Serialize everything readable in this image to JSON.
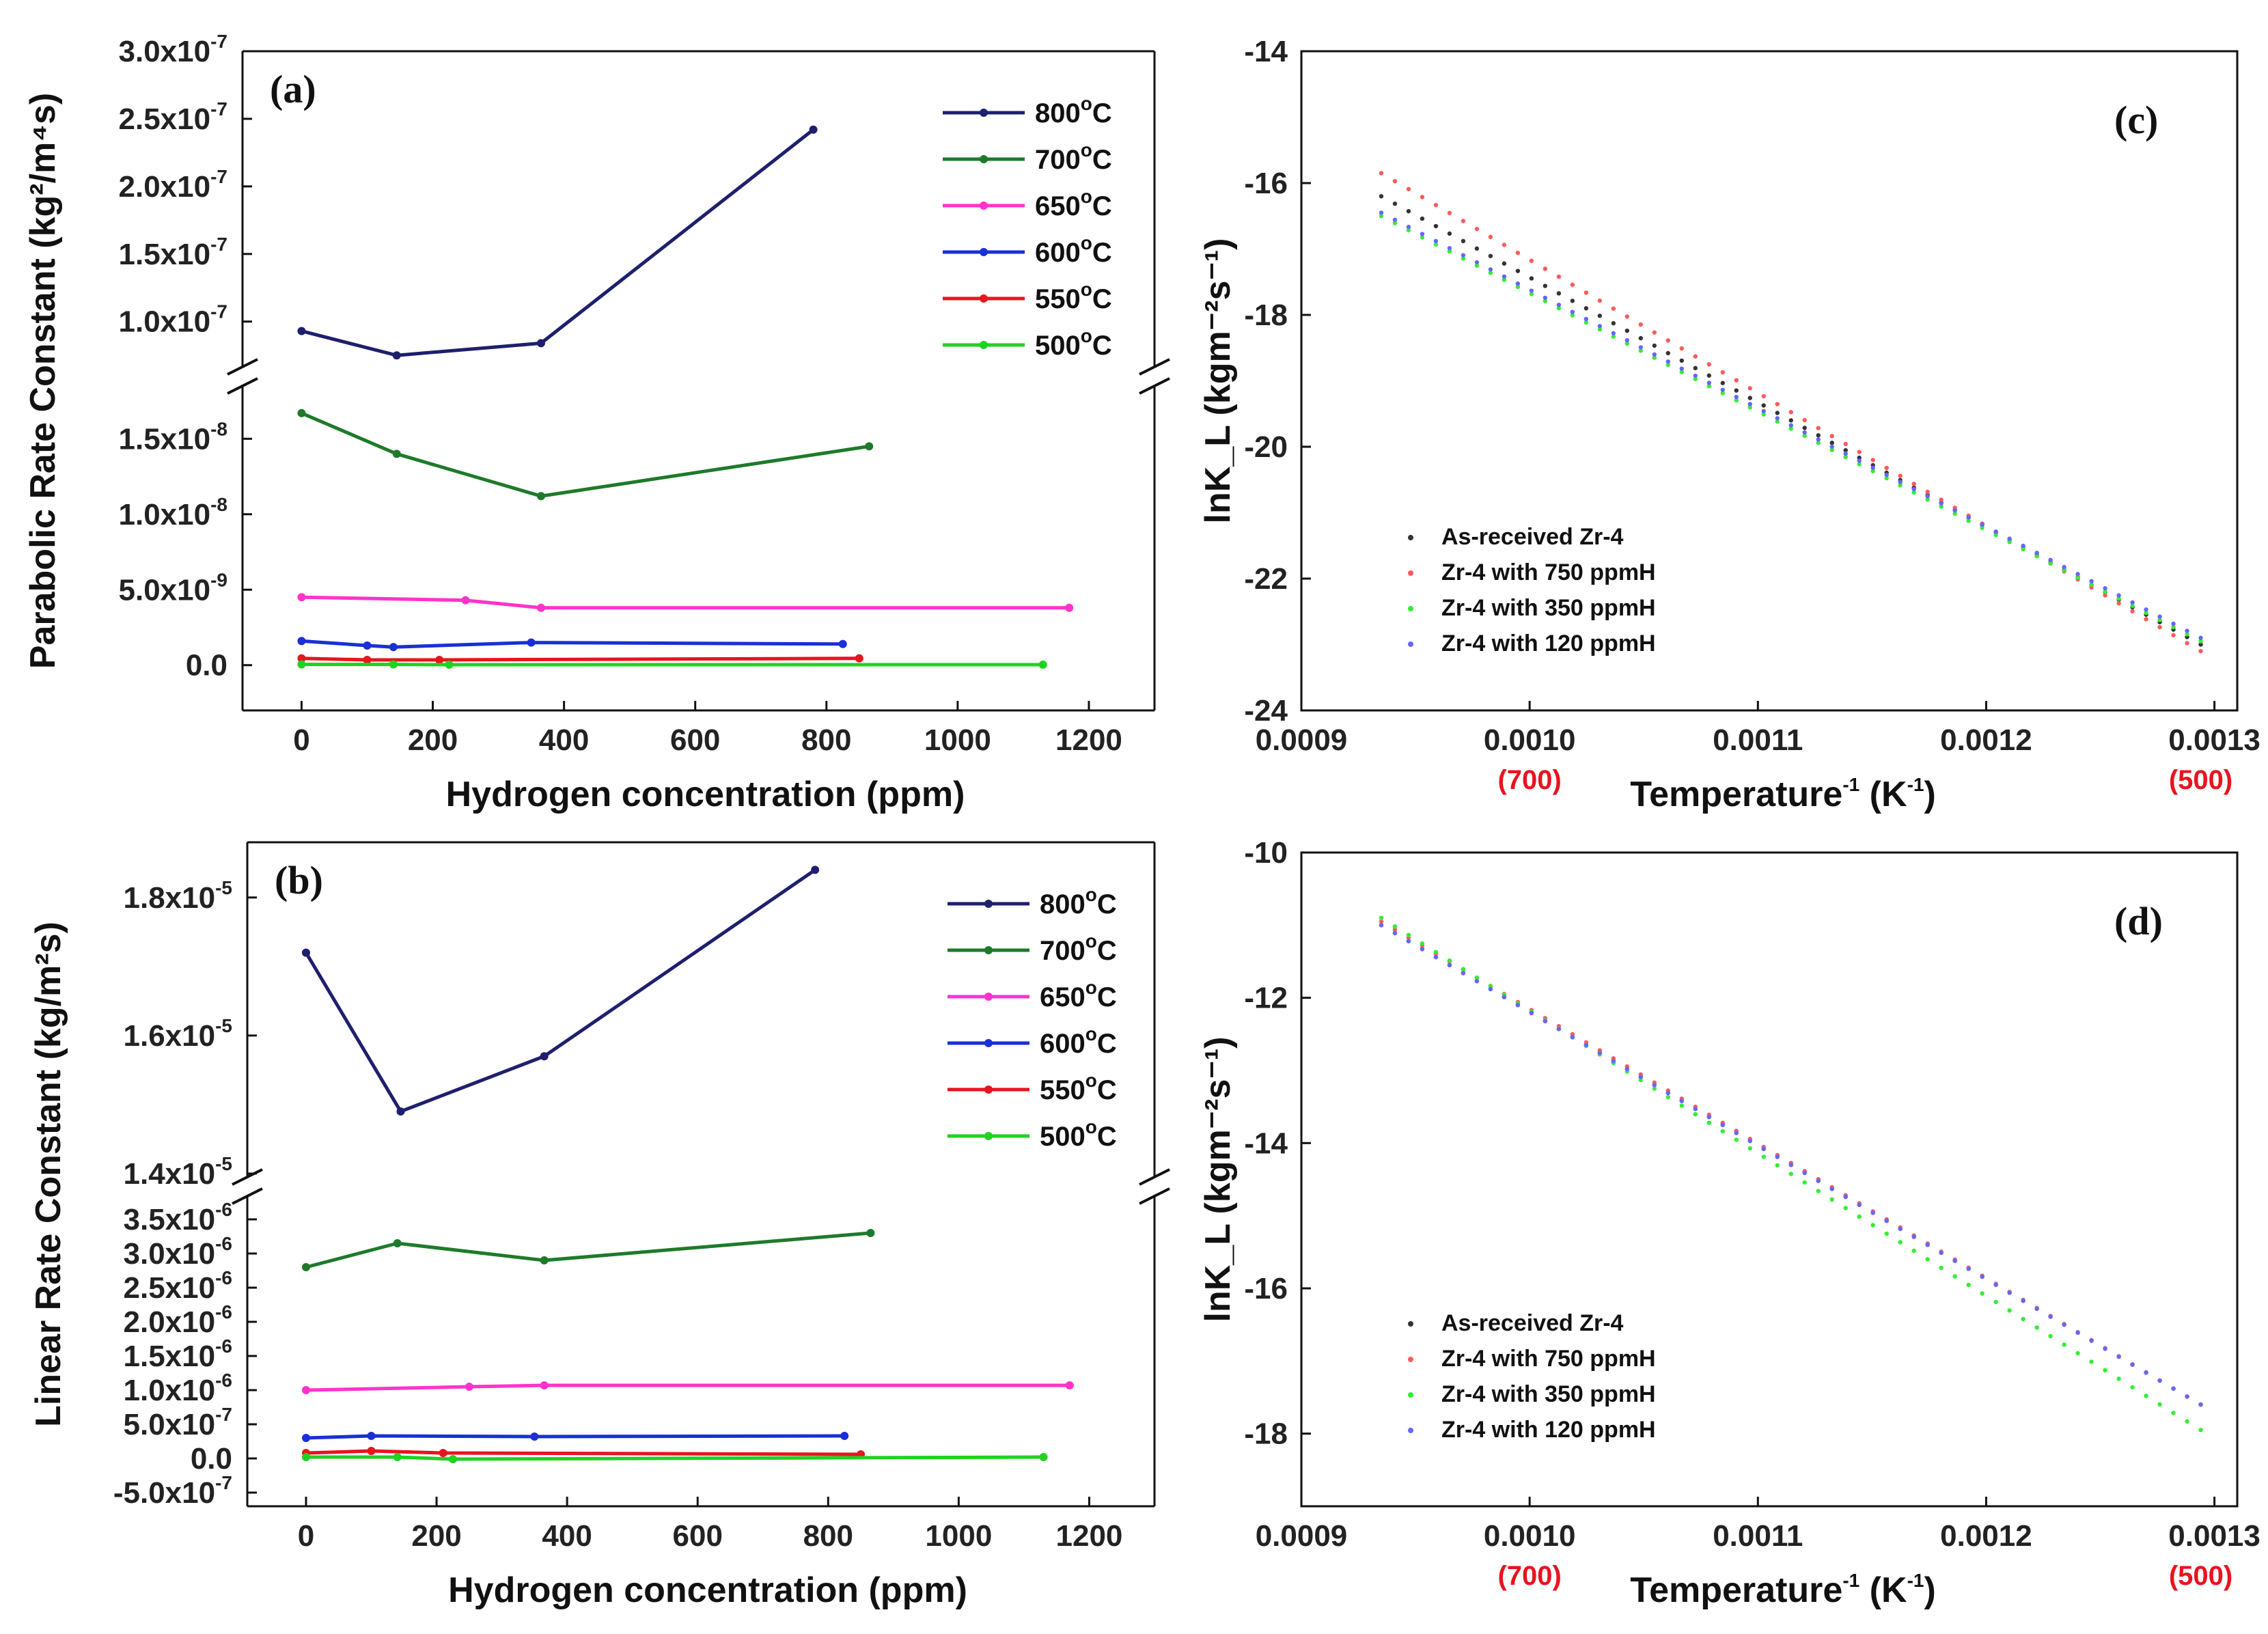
{
  "chart_data": [
    {
      "id": "a",
      "type": "line",
      "panel_label": "(a)",
      "xlabel": "Hydrogen concentration (ppm)",
      "ylabel": "Parabolic Rate Constant (kg²/m⁴s)",
      "xlim": [
        -90,
        1300
      ],
      "xticks": [
        0,
        200,
        400,
        600,
        800,
        1000,
        1200
      ],
      "axis_break": true,
      "upper_segment": {
        "ylim": [
          6.5e-08,
          3e-07
        ],
        "yticks": [
          {
            "v": 1e-07,
            "m": "1.0x10",
            "e": "-7"
          },
          {
            "v": 1.5e-07,
            "m": "1.5x10",
            "e": "-7"
          },
          {
            "v": 2e-07,
            "m": "2.0x10",
            "e": "-7"
          },
          {
            "v": 2.5e-07,
            "m": "2.5x10",
            "e": "-7"
          },
          {
            "v": 3e-07,
            "m": "3.0x10",
            "e": "-7"
          }
        ]
      },
      "lower_segment": {
        "ylim": [
          -3e-09,
          1.85e-08
        ],
        "yticks": [
          {
            "v": 0,
            "m": "0.0",
            "e": ""
          },
          {
            "v": 5e-09,
            "m": "5.0x10",
            "e": "-9"
          },
          {
            "v": 1e-08,
            "m": "1.0x10",
            "e": "-8"
          },
          {
            "v": 1.5e-08,
            "m": "1.5x10",
            "e": "-8"
          }
        ]
      },
      "series": [
        {
          "name": "800",
          "unit": "°C",
          "color": "#1f1f6e",
          "x": [
            0,
            145,
            365,
            780
          ],
          "y": [
            9.3e-08,
            7.5e-08,
            8.4e-08,
            2.42e-07
          ]
        },
        {
          "name": "700",
          "unit": "°C",
          "color": "#1e7a2a",
          "x": [
            0,
            145,
            365,
            865
          ],
          "y": [
            1.67e-08,
            1.4e-08,
            1.12e-08,
            1.45e-08
          ]
        },
        {
          "name": "650",
          "unit": "°C",
          "color": "#ff33cc",
          "x": [
            0,
            250,
            365,
            1170
          ],
          "y": [
            4.5e-09,
            4.3e-09,
            3.8e-09,
            3.8e-09
          ]
        },
        {
          "name": "600",
          "unit": "°C",
          "color": "#1a2fd6",
          "x": [
            0,
            100,
            140,
            350,
            825
          ],
          "y": [
            1.6e-09,
            1.3e-09,
            1.2e-09,
            1.5e-09,
            1.4e-09
          ]
        },
        {
          "name": "550",
          "unit": "°C",
          "color": "#e8141e",
          "x": [
            0,
            100,
            210,
            850
          ],
          "y": [
            4.5e-10,
            3.5e-10,
            3.5e-10,
            4.5e-10
          ]
        },
        {
          "name": "500",
          "unit": "°C",
          "color": "#1fd21f",
          "x": [
            0,
            140,
            225,
            1130
          ],
          "y": [
            5e-11,
            5e-11,
            3e-11,
            3e-11
          ]
        }
      ]
    },
    {
      "id": "b",
      "type": "line",
      "panel_label": "(b)",
      "xlabel": "Hydrogen concentration (ppm)",
      "ylabel": "Linear Rate Constant (kg/m²s)",
      "xlim": [
        -90,
        1300
      ],
      "xticks": [
        0,
        200,
        400,
        600,
        800,
        1000,
        1200
      ],
      "axis_break": true,
      "upper_segment": {
        "ylim": [
          1.4e-05,
          1.88e-05
        ],
        "yticks": [
          {
            "v": 1.4e-05,
            "m": "1.4x10",
            "e": "-5"
          },
          {
            "v": 1.6e-05,
            "m": "1.6x10",
            "e": "-5"
          },
          {
            "v": 1.8e-05,
            "m": "1.8x10",
            "e": "-5"
          }
        ]
      },
      "lower_segment": {
        "ylim": [
          -7e-07,
          3.8e-06
        ],
        "yticks": [
          {
            "v": -5e-07,
            "m": "-5.0x10",
            "e": "-7"
          },
          {
            "v": 0,
            "m": "0.0",
            "e": ""
          },
          {
            "v": 5e-07,
            "m": "5.0x10",
            "e": "-7"
          },
          {
            "v": 1e-06,
            "m": "1.0x10",
            "e": "-6"
          },
          {
            "v": 1.5e-06,
            "m": "1.5x10",
            "e": "-6"
          },
          {
            "v": 2e-06,
            "m": "2.0x10",
            "e": "-6"
          },
          {
            "v": 2.5e-06,
            "m": "2.5x10",
            "e": "-6"
          },
          {
            "v": 3e-06,
            "m": "3.0x10",
            "e": "-6"
          },
          {
            "v": 3.5e-06,
            "m": "3.5x10",
            "e": "-6"
          }
        ]
      },
      "series": [
        {
          "name": "800",
          "unit": "°C",
          "color": "#1f1f6e",
          "x": [
            0,
            145,
            365,
            780
          ],
          "y": [
            1.72e-05,
            1.49e-05,
            1.57e-05,
            1.84e-05
          ]
        },
        {
          "name": "700",
          "unit": "°C",
          "color": "#1e7a2a",
          "x": [
            0,
            140,
            365,
            865
          ],
          "y": [
            2.8e-06,
            3.15e-06,
            2.9e-06,
            3.3e-06
          ]
        },
        {
          "name": "650",
          "unit": "°C",
          "color": "#ff33cc",
          "x": [
            0,
            250,
            365,
            1170
          ],
          "y": [
            1e-06,
            1.05e-06,
            1.07e-06,
            1.07e-06
          ]
        },
        {
          "name": "600",
          "unit": "°C",
          "color": "#1a2fd6",
          "x": [
            0,
            100,
            350,
            825
          ],
          "y": [
            3e-07,
            3.3e-07,
            3.2e-07,
            3.3e-07
          ]
        },
        {
          "name": "550",
          "unit": "°C",
          "color": "#e8141e",
          "x": [
            0,
            100,
            210,
            850
          ],
          "y": [
            8e-08,
            1.1e-07,
            8e-08,
            6e-08
          ]
        },
        {
          "name": "500",
          "unit": "°C",
          "color": "#1fd21f",
          "x": [
            0,
            140,
            225,
            1130
          ],
          "y": [
            2e-08,
            2e-08,
            -1e-08,
            2e-08
          ]
        }
      ]
    },
    {
      "id": "c",
      "type": "scatter",
      "panel_label": "(c)",
      "xlabel": "Temperature",
      "xlabel_sup": "-1",
      "xlabel_tail": " (K",
      "xlabel_tail_sup": "-1",
      "xlabel_end": ")",
      "ylabel": "lnK_L (kgm⁻²s⁻¹)",
      "xlim": [
        0.0009,
        0.00131
      ],
      "ylim": [
        -24,
        -14
      ],
      "xticks": [
        0.0009,
        0.001,
        0.0011,
        0.0012,
        0.0013
      ],
      "xtick_labels": [
        "0.0009",
        "0.0010",
        "0.0011",
        "0.0012",
        "0.0013"
      ],
      "yticks": [
        -24,
        -22,
        -20,
        -18,
        -16,
        -14
      ],
      "red_annotations": [
        {
          "x": 0.001,
          "text": "(700)"
        },
        {
          "x": 0.001294,
          "text": "(500)"
        }
      ],
      "series": [
        {
          "name": "As-received Zr-4",
          "color": "#333333",
          "x": [
            0.000935,
            0.001294
          ],
          "y": [
            -16.2,
            -23.0
          ]
        },
        {
          "name": "Zr-4 with 750 ppmH",
          "color": "#ff5a5a",
          "x": [
            0.000935,
            0.001294
          ],
          "y": [
            -15.85,
            -23.1
          ]
        },
        {
          "name": "Zr-4 with 350 ppmH",
          "color": "#33ee33",
          "x": [
            0.000935,
            0.001294
          ],
          "y": [
            -16.5,
            -22.95
          ]
        },
        {
          "name": "Zr-4 with 120 ppmH",
          "color": "#6666ff",
          "x": [
            0.000935,
            0.001294
          ],
          "y": [
            -16.45,
            -22.9
          ]
        }
      ]
    },
    {
      "id": "d",
      "type": "scatter",
      "panel_label": "(d)",
      "xlabel": "Temperature",
      "xlabel_sup": "-1",
      "xlabel_tail": " (K",
      "xlabel_tail_sup": "-1",
      "xlabel_end": ")",
      "ylabel": "lnK_L (kgm⁻²s⁻¹)",
      "xlim": [
        0.0009,
        0.00131
      ],
      "ylim": [
        -19,
        -10
      ],
      "xticks": [
        0.0009,
        0.001,
        0.0011,
        0.0012,
        0.0013
      ],
      "xtick_labels": [
        "0.0009",
        "0.0010",
        "0.0011",
        "0.0012",
        "0.0013"
      ],
      "yticks": [
        -18,
        -16,
        -14,
        -12,
        -10
      ],
      "red_annotations": [
        {
          "x": 0.001,
          "text": "(700)"
        },
        {
          "x": 0.001294,
          "text": "(500)"
        }
      ],
      "series": [
        {
          "name": "As-received Zr-4",
          "color": "#333333",
          "x": [
            0.000935,
            0.001294
          ],
          "y": [
            -11.0,
            -17.6
          ]
        },
        {
          "name": "Zr-4 with 750 ppmH",
          "color": "#ff5a5a",
          "x": [
            0.000935,
            0.001294
          ],
          "y": [
            -10.95,
            -17.6
          ]
        },
        {
          "name": "Zr-4 with 350 ppmH",
          "color": "#33ee33",
          "x": [
            0.000935,
            0.001294
          ],
          "y": [
            -10.9,
            -17.95
          ]
        },
        {
          "name": "Zr-4 with 120 ppmH",
          "color": "#6666ff",
          "x": [
            0.000935,
            0.001294
          ],
          "y": [
            -11.0,
            -17.6
          ]
        }
      ]
    }
  ]
}
